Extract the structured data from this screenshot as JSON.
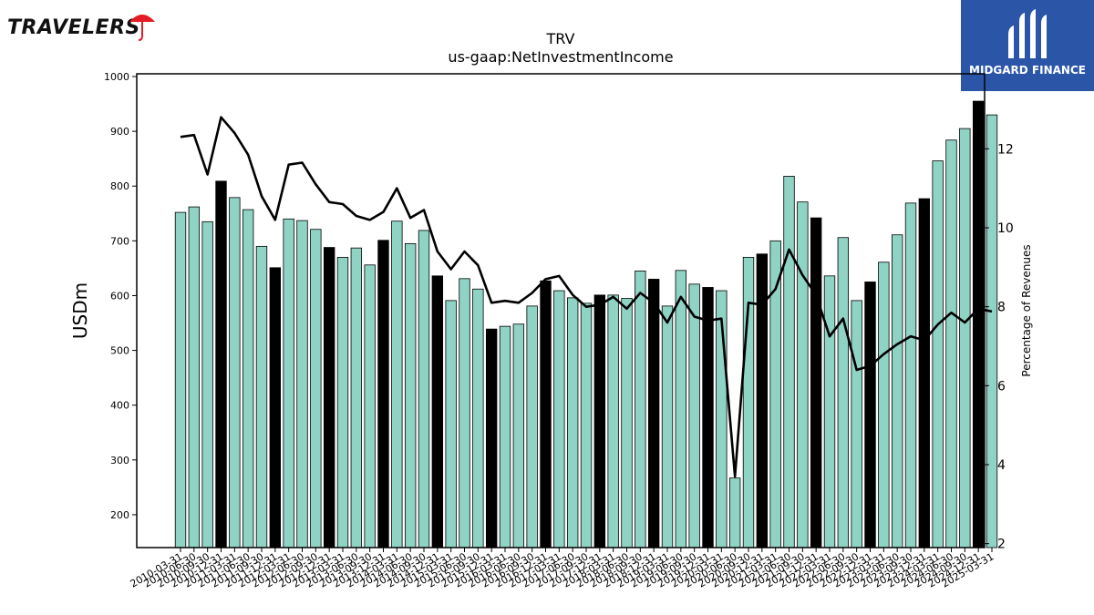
{
  "brand": {
    "left_logo_text": "TRAVELERS",
    "right_logo_text": "MIDGARD FINANCE"
  },
  "colors": {
    "bar_teal": "#8fd3c5",
    "bar_black": "#000000",
    "line": "#000000",
    "brand_blue": "#2b56a8",
    "umbrella_red": "#e31b23"
  },
  "chart_data": {
    "type": "bar",
    "title": "TRV",
    "subtitle": "us-gaap:NetInvestmentIncome",
    "ylabel": "USDm",
    "y2label": "Percentage of Revenues",
    "ylim": [
      140,
      1005
    ],
    "y2lim": [
      1.9,
      13.9
    ],
    "yticks": [
      200,
      300,
      400,
      500,
      600,
      700,
      800,
      900,
      1000
    ],
    "y2ticks": [
      2,
      4,
      6,
      8,
      10,
      12
    ],
    "categories": [
      "2010-03-31",
      "2010-06-30",
      "2010-09-30",
      "2010-12-31",
      "2011-03-31",
      "2011-06-30",
      "2011-09-30",
      "2011-12-31",
      "2012-03-31",
      "2012-06-30",
      "2012-09-30",
      "2012-12-31",
      "2013-03-31",
      "2013-06-30",
      "2013-09-30",
      "2013-12-31",
      "2014-03-31",
      "2014-06-30",
      "2014-09-30",
      "2014-12-31",
      "2015-03-31",
      "2015-06-30",
      "2015-09-30",
      "2015-12-31",
      "2016-03-31",
      "2016-06-30",
      "2016-09-30",
      "2016-12-31",
      "2017-03-31",
      "2017-06-30",
      "2017-09-30",
      "2017-12-31",
      "2018-03-31",
      "2018-06-30",
      "2018-09-30",
      "2018-12-31",
      "2019-03-31",
      "2019-06-30",
      "2019-09-30",
      "2019-12-31",
      "2020-03-31",
      "2020-06-30",
      "2020-09-30",
      "2020-12-31",
      "2021-03-31",
      "2021-06-30",
      "2021-09-30",
      "2021-12-31",
      "2022-03-31",
      "2022-06-30",
      "2022-09-30",
      "2022-12-31",
      "2023-03-31",
      "2023-06-30",
      "2023-09-30",
      "2023-12-31",
      "2024-03-31",
      "2024-06-30",
      "2024-09-30",
      "2024-12-31",
      "2025-03-31"
    ],
    "series": [
      {
        "kind": "bar",
        "values": [
          752,
          762,
          735,
          809,
          779,
          757,
          690,
          651,
          740,
          737,
          721,
          688,
          670,
          687,
          656,
          701,
          736,
          695,
          719,
          636,
          591,
          631,
          612,
          539,
          544,
          548,
          581,
          627,
          609,
          596,
          586,
          601,
          601,
          595,
          645,
          630,
          581,
          646,
          621,
          615,
          609,
          267,
          670,
          676,
          700,
          818,
          771,
          742,
          636,
          706,
          591,
          625,
          661,
          711,
          769,
          777,
          846,
          884,
          905,
          955,
          930
        ],
        "highlight": [
          3,
          7,
          11,
          15,
          19,
          23,
          27,
          31,
          35,
          39,
          43,
          47,
          51,
          55,
          59
        ]
      },
      {
        "kind": "line",
        "axis": "right",
        "values": [
          12.3,
          12.35,
          11.35,
          12.8,
          12.4,
          11.85,
          10.8,
          10.2,
          11.6,
          11.65,
          11.1,
          10.65,
          10.6,
          10.3,
          10.2,
          10.4,
          11.0,
          10.25,
          10.45,
          9.4,
          8.95,
          9.4,
          9.05,
          8.1,
          8.15,
          8.1,
          8.35,
          8.7,
          8.78,
          8.3,
          8.0,
          8.05,
          8.25,
          7.95,
          8.35,
          8.1,
          7.6,
          8.25,
          7.75,
          7.65,
          7.7,
          3.7,
          8.1,
          8.05,
          8.45,
          9.45,
          8.8,
          8.3,
          7.25,
          7.7,
          6.4,
          6.5,
          6.8,
          7.05,
          7.25,
          7.15,
          7.55,
          7.85,
          7.6,
          7.95,
          7.88
        ]
      }
    ],
    "legend": "none",
    "grid": false
  }
}
